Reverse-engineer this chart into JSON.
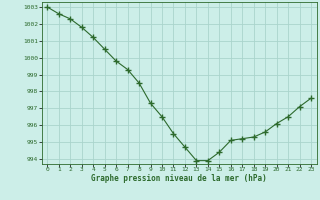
{
  "x": [
    0,
    1,
    2,
    3,
    4,
    5,
    6,
    7,
    8,
    9,
    10,
    11,
    12,
    13,
    14,
    15,
    16,
    17,
    18,
    19,
    20,
    21,
    22,
    23
  ],
  "y": [
    1003.0,
    1002.6,
    1002.3,
    1001.8,
    1001.2,
    1000.5,
    999.8,
    999.3,
    998.5,
    997.3,
    996.5,
    995.5,
    994.7,
    993.9,
    993.9,
    994.4,
    995.1,
    995.2,
    995.3,
    995.6,
    996.1,
    996.5,
    997.1,
    997.6
  ],
  "line_color": "#2d6a2d",
  "marker_color": "#2d6a2d",
  "bg_color": "#cceee8",
  "grid_color": "#aad4cc",
  "xlabel": "Graphe pression niveau de la mer (hPa)",
  "ylim_min": 993.7,
  "ylim_max": 1003.3,
  "yticks": [
    994,
    995,
    996,
    997,
    998,
    999,
    1000,
    1001,
    1002,
    1003
  ]
}
